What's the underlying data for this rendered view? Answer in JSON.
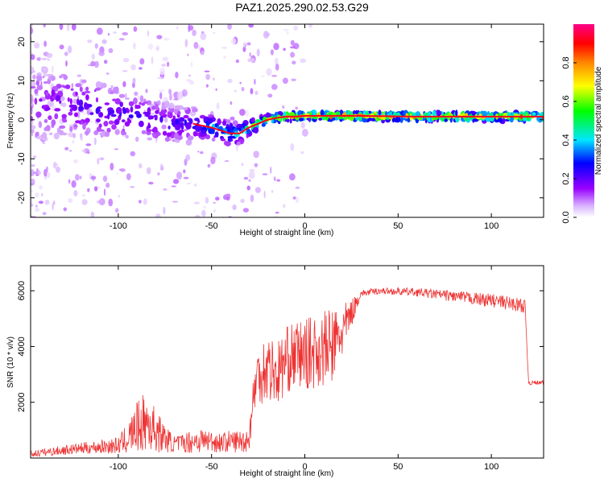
{
  "title": "PAZ1.2025.290.02.53.G29",
  "chart_data": [
    {
      "type": "heatmap",
      "xlabel": "Height of straight line (km)",
      "ylabel": "Frequency (Hz)",
      "xlim": [
        -147,
        128
      ],
      "ylim": [
        -25,
        24.5
      ],
      "xticks": [
        -100,
        -50,
        0,
        50,
        100
      ],
      "xtick_labels": [
        "-100",
        "-50",
        "0",
        "50",
        "100"
      ],
      "yticks": [
        -20,
        -10,
        0,
        10,
        20
      ],
      "ytick_labels": [
        "-20",
        "-10",
        "0",
        "10",
        "20"
      ],
      "colorbar": {
        "label": "Normalized spectral amplitude",
        "range": [
          0,
          1
        ],
        "ticks": [
          0.0,
          0.2,
          0.4,
          0.6,
          0.8
        ],
        "tick_labels": [
          "0.0",
          "0.2",
          "0.4",
          "0.6",
          "0.8"
        ]
      },
      "ridge": {
        "x": [
          -147,
          -130,
          -110,
          -90,
          -75,
          -60,
          -50,
          -40,
          -35,
          -30,
          -25,
          -20,
          -15,
          -10,
          -5,
          0,
          10,
          30,
          60,
          90,
          128
        ],
        "freq": [
          4,
          4,
          2.5,
          1,
          -1,
          -1,
          -2,
          -3.5,
          -3.5,
          -2,
          -1,
          0,
          0.5,
          0.8,
          0.8,
          1,
          1,
          1,
          0.8,
          0.8,
          0.8
        ],
        "amplitude": [
          0.18,
          0.22,
          0.25,
          0.25,
          0.25,
          0.3,
          0.42,
          0.45,
          0.5,
          0.6,
          0.72,
          0.8,
          0.85,
          0.9,
          0.95,
          0.95,
          0.95,
          0.92,
          0.9,
          0.9,
          0.9
        ],
        "spread_hz": [
          9,
          9,
          7,
          6,
          5,
          4,
          3,
          3,
          2.5,
          2,
          1.5,
          1.2,
          1,
          1,
          1,
          1,
          1,
          1,
          1,
          1,
          1
        ]
      }
    },
    {
      "type": "line",
      "xlabel": "Height of straight line (km)",
      "ylabel": "SNR (10 * v/v)",
      "xlim": [
        -147,
        128
      ],
      "ylim": [
        0,
        6900
      ],
      "xticks": [
        -100,
        -50,
        0,
        50,
        100
      ],
      "xtick_labels": [
        "-100",
        "-50",
        "0",
        "50",
        "100"
      ],
      "yticks": [
        2000,
        4000,
        6000
      ],
      "ytick_labels": [
        "2000",
        "4000",
        "6000"
      ],
      "color": "#ee3333",
      "envelope": {
        "x": [
          -147,
          -120,
          -100,
          -95,
          -90,
          -85,
          -80,
          -75,
          -70,
          -65,
          -60,
          -55,
          -50,
          -45,
          -40,
          -35,
          -30,
          -27,
          -25,
          -20,
          -15,
          -10,
          -5,
          0,
          5,
          10,
          15,
          20,
          25,
          30,
          40,
          60,
          80,
          100,
          110,
          118,
          120,
          128
        ],
        "mean": [
          150,
          350,
          450,
          700,
          1100,
          1300,
          1000,
          700,
          500,
          550,
          600,
          650,
          600,
          550,
          600,
          600,
          650,
          2500,
          3000,
          3300,
          3000,
          3500,
          3700,
          3700,
          3800,
          3900,
          4000,
          4500,
          5200,
          5900,
          6000,
          5950,
          5800,
          5650,
          5550,
          5450,
          2700,
          2700
        ],
        "noise": [
          120,
          200,
          300,
          550,
          900,
          1100,
          800,
          500,
          300,
          350,
          450,
          450,
          400,
          350,
          400,
          400,
          450,
          900,
          1100,
          1300,
          1200,
          1200,
          1200,
          1300,
          1300,
          1400,
          1400,
          1000,
          500,
          120,
          120,
          150,
          200,
          250,
          250,
          250,
          80,
          80
        ]
      }
    }
  ]
}
